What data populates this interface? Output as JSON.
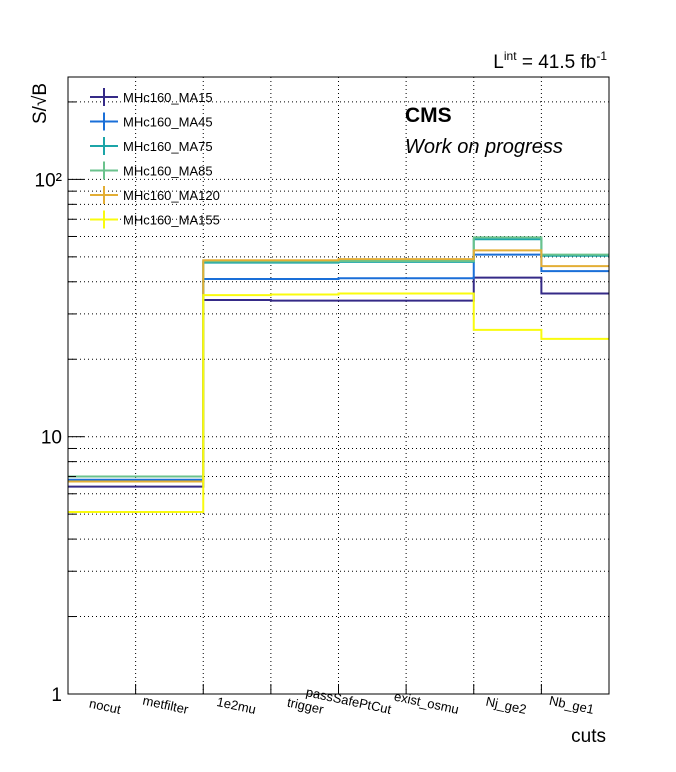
{
  "chart_data": {
    "type": "line",
    "title": "",
    "xlabel": "cuts",
    "ylabel": "S/√B",
    "yscale": "log",
    "ylim": [
      1,
      250
    ],
    "grid": true,
    "legend_placement": "top-left",
    "lumi_text": {
      "prefix": "L",
      "sup1": "int",
      "middle": " = 41.5 fb",
      "sup2": "-1"
    },
    "cms_label": "CMS",
    "cms_sublabel": "Work on progress",
    "categories": [
      "nocut",
      "metfilter",
      "1e2mu",
      "trigger",
      "passSafePtCut",
      "exist_osmu",
      "Nj_ge2",
      "Nb_ge1"
    ],
    "y_tick_labels": [
      "1",
      "10",
      "10²"
    ],
    "series": [
      {
        "name": "MHc160_MA15",
        "color": "#352a87",
        "values": [
          6.4,
          6.4,
          34.0,
          33.8,
          33.8,
          33.8,
          41.5,
          36.0
        ]
      },
      {
        "name": "MHc160_MA45",
        "color": "#1a6fd8",
        "values": [
          6.8,
          6.8,
          41.0,
          41.0,
          41.3,
          41.3,
          51.0,
          44.0
        ]
      },
      {
        "name": "MHc160_MA75",
        "color": "#1ca5a8",
        "values": [
          7.0,
          7.0,
          47.5,
          47.5,
          47.8,
          47.8,
          58.5,
          50.5
        ]
      },
      {
        "name": "MHc160_MA85",
        "color": "#6ac28c",
        "values": [
          7.0,
          7.0,
          48.0,
          48.0,
          48.2,
          48.2,
          59.5,
          51.0
        ]
      },
      {
        "name": "MHc160_MA120",
        "color": "#e3ae35",
        "values": [
          6.7,
          6.7,
          48.5,
          48.5,
          49.0,
          49.0,
          53.0,
          46.0
        ]
      },
      {
        "name": "MHc160_MA155",
        "color": "#f9fb0e",
        "values": [
          5.1,
          5.1,
          35.5,
          35.7,
          36.0,
          36.0,
          26.0,
          24.0
        ]
      }
    ]
  }
}
